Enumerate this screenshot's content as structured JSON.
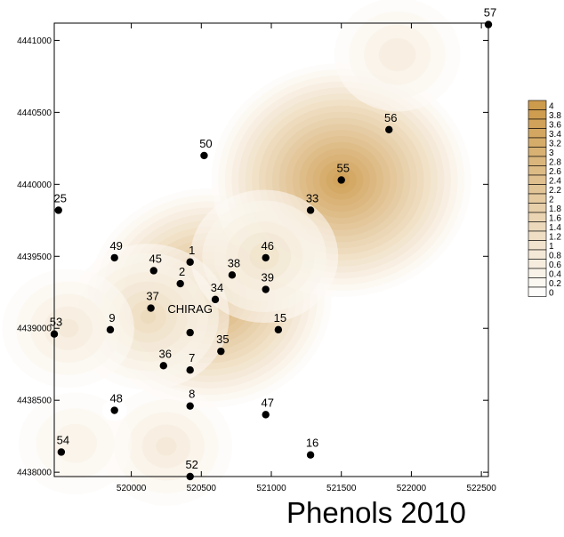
{
  "chart_data": {
    "type": "contour_map",
    "title": "Phenols 2010",
    "xlim": [
      519450,
      522550
    ],
    "ylim": [
      4437970,
      4441120
    ],
    "x_ticks": [
      520000,
      520500,
      521000,
      521500,
      522000,
      522500
    ],
    "y_ticks": [
      4438000,
      4438500,
      4439000,
      4439500,
      4440000,
      4440500,
      4441000
    ],
    "colors": {
      "low": "#ffffff",
      "high": "#cd9b4c",
      "marker": "#000000"
    },
    "legend": {
      "position": "right",
      "levels": [
        4,
        3.8,
        3.6,
        3.4,
        3.2,
        3,
        2.8,
        2.6,
        2.4,
        2.2,
        2,
        1.8,
        1.6,
        1.4,
        1.2,
        1,
        0.8,
        0.6,
        0.4,
        0.2,
        0
      ],
      "labels": [
        "4",
        "3.8",
        "3.6",
        "3.4",
        "3.2",
        "3",
        "2.8",
        "2.6",
        "2.4",
        "2.2",
        "2",
        "1.8",
        "1.6",
        "1.4",
        "1.2",
        "1",
        "0.8",
        "0.6",
        "0.4",
        "0.2",
        "0"
      ]
    },
    "points": [
      {
        "label": "57",
        "x": 522550,
        "y": 4441110
      },
      {
        "label": "56",
        "x": 521840,
        "y": 4440380
      },
      {
        "label": "50",
        "x": 520520,
        "y": 4440200
      },
      {
        "label": "55",
        "x": 521500,
        "y": 4440030
      },
      {
        "label": "25",
        "x": 519480,
        "y": 4439820
      },
      {
        "label": "33",
        "x": 521280,
        "y": 4439820
      },
      {
        "label": "49",
        "x": 519880,
        "y": 4439490
      },
      {
        "label": "1",
        "x": 520420,
        "y": 4439460
      },
      {
        "label": "46",
        "x": 520960,
        "y": 4439490
      },
      {
        "label": "45",
        "x": 520160,
        "y": 4439400
      },
      {
        "label": "38",
        "x": 520720,
        "y": 4439370
      },
      {
        "label": "2",
        "x": 520350,
        "y": 4439310
      },
      {
        "label": "39",
        "x": 520960,
        "y": 4439270
      },
      {
        "label": "34",
        "x": 520600,
        "y": 4439200
      },
      {
        "label": "37",
        "x": 520140,
        "y": 4439140
      },
      {
        "label": "53",
        "x": 519450,
        "y": 4438960
      },
      {
        "label": "9",
        "x": 519850,
        "y": 4438990
      },
      {
        "label": "CHIRAG",
        "x": 520420,
        "y": 4438970
      },
      {
        "label": "15",
        "x": 521050,
        "y": 4438990
      },
      {
        "label": "35",
        "x": 520640,
        "y": 4438840
      },
      {
        "label": "36",
        "x": 520230,
        "y": 4438740
      },
      {
        "label": "7",
        "x": 520420,
        "y": 4438710
      },
      {
        "label": "48",
        "x": 519880,
        "y": 4438430
      },
      {
        "label": "8",
        "x": 520420,
        "y": 4438460
      },
      {
        "label": "47",
        "x": 520960,
        "y": 4438400
      },
      {
        "label": "54",
        "x": 519500,
        "y": 4438140
      },
      {
        "label": "16",
        "x": 521280,
        "y": 4438120
      },
      {
        "label": "52",
        "x": 520420,
        "y": 4437970
      }
    ],
    "sources": [
      {
        "x": 520560,
        "y": 4439210,
        "value": 3.4
      },
      {
        "x": 520120,
        "y": 4439080,
        "value": 1.5
      },
      {
        "x": 521500,
        "y": 4440030,
        "value": 3.8
      },
      {
        "x": 521900,
        "y": 4440900,
        "value": 0.8
      },
      {
        "x": 520250,
        "y": 4438180,
        "value": 0.9
      },
      {
        "x": 519600,
        "y": 4438200,
        "value": 0.6
      },
      {
        "x": 519550,
        "y": 4439000,
        "value": 0.9
      },
      {
        "x": 520950,
        "y": 4439500,
        "value": 1.2
      },
      {
        "x": 519880,
        "y": 4438430,
        "value": 0.0
      }
    ]
  }
}
